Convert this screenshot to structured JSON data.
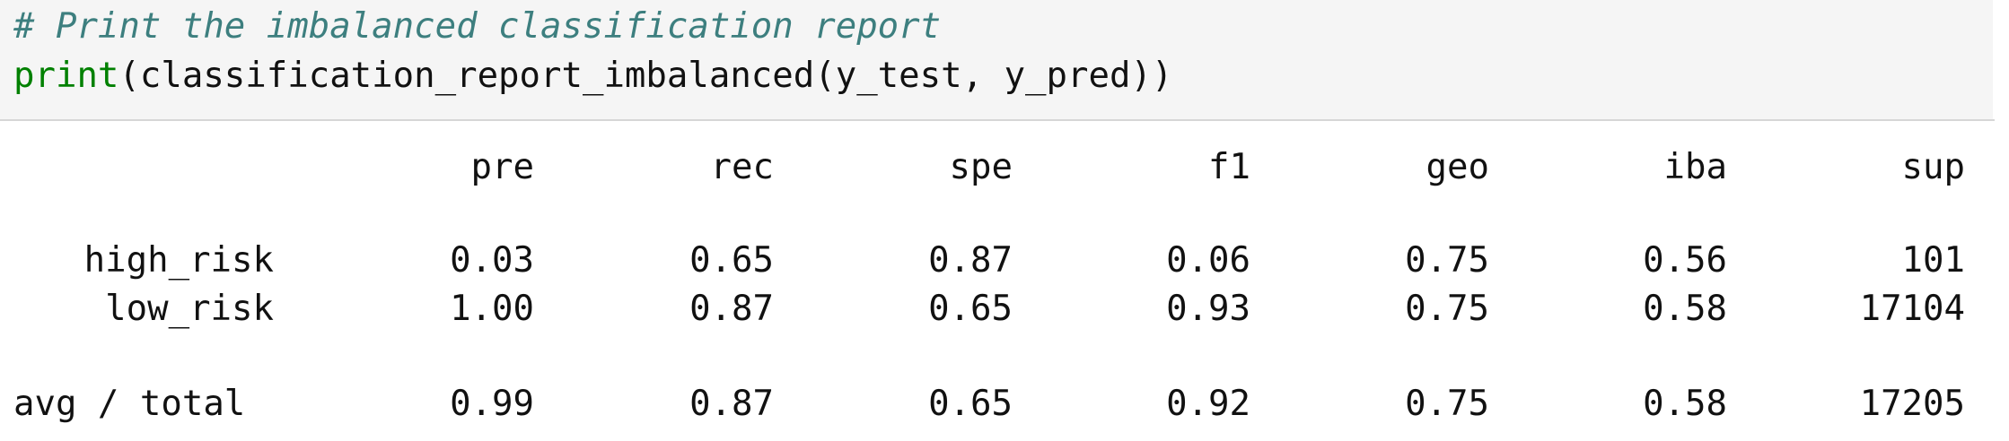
{
  "code": {
    "comment": "# Print the imbalanced classification report",
    "call_builtin": "print",
    "call_rest": "(classification_report_imbalanced(y_test, y_pred))"
  },
  "report": {
    "columns": [
      "pre",
      "rec",
      "spe",
      "f1",
      "geo",
      "iba",
      "sup"
    ],
    "rows": [
      {
        "label": "high_risk",
        "values": [
          "0.03",
          "0.65",
          "0.87",
          "0.06",
          "0.75",
          "0.56",
          "101"
        ]
      },
      {
        "label": "low_risk",
        "values": [
          "1.00",
          "0.87",
          "0.65",
          "0.93",
          "0.75",
          "0.58",
          "17104"
        ]
      }
    ],
    "avg": {
      "label": "avg / total",
      "values": [
        "0.99",
        "0.87",
        "0.65",
        "0.92",
        "0.75",
        "0.58",
        "17205"
      ]
    }
  }
}
